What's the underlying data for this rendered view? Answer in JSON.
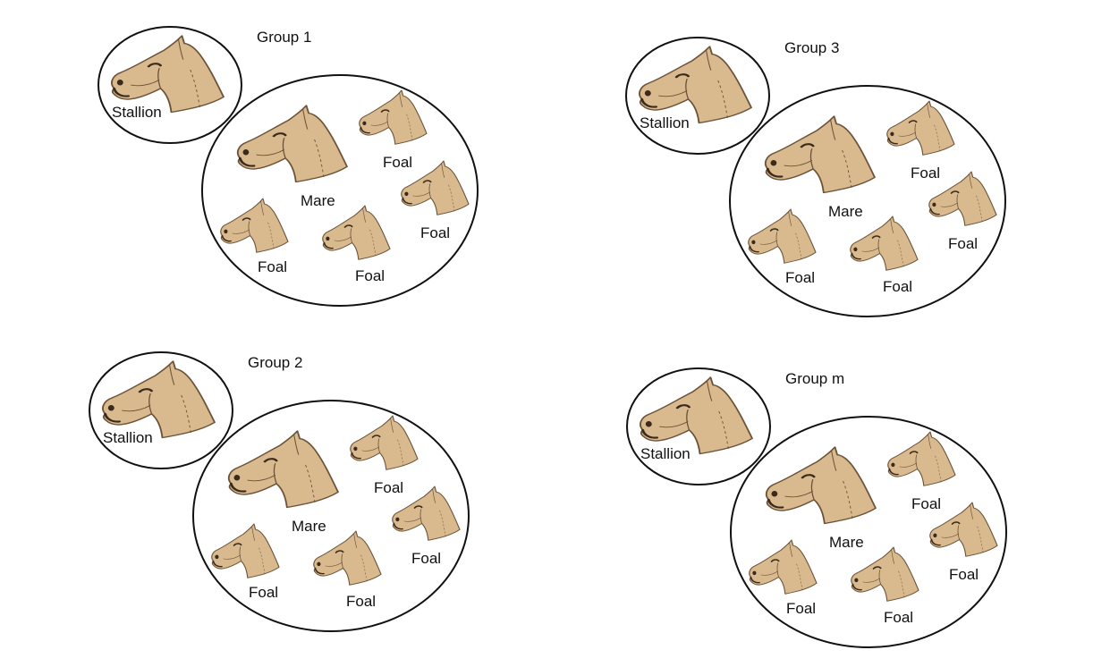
{
  "colors": {
    "background": "#ffffff",
    "outline": "#111111",
    "horse_coat": "#d9b98e",
    "horse_line": "#6b5238",
    "horse_dark": "#3a2a1c"
  },
  "groups": [
    {
      "title": "Group 1",
      "stallion": {
        "label": "Stallion",
        "icon": "horse-head-icon"
      },
      "mare": {
        "label": "Mare",
        "icon": "horse-head-icon"
      },
      "foals": [
        {
          "label": "Foal",
          "icon": "horse-head-icon"
        },
        {
          "label": "Foal",
          "icon": "horse-head-icon"
        },
        {
          "label": "Foal",
          "icon": "horse-head-icon"
        },
        {
          "label": "Foal",
          "icon": "horse-head-icon"
        }
      ]
    },
    {
      "title": "Group 3",
      "stallion": {
        "label": "Stallion",
        "icon": "horse-head-icon"
      },
      "mare": {
        "label": "Mare",
        "icon": "horse-head-icon"
      },
      "foals": [
        {
          "label": "Foal",
          "icon": "horse-head-icon"
        },
        {
          "label": "Foal",
          "icon": "horse-head-icon"
        },
        {
          "label": "Foal",
          "icon": "horse-head-icon"
        },
        {
          "label": "Foal",
          "icon": "horse-head-icon"
        }
      ]
    },
    {
      "title": "Group 2",
      "stallion": {
        "label": "Stallion",
        "icon": "horse-head-icon"
      },
      "mare": {
        "label": "Mare",
        "icon": "horse-head-icon"
      },
      "foals": [
        {
          "label": "Foal",
          "icon": "horse-head-icon"
        },
        {
          "label": "Foal",
          "icon": "horse-head-icon"
        },
        {
          "label": "Foal",
          "icon": "horse-head-icon"
        },
        {
          "label": "Foal",
          "icon": "horse-head-icon"
        }
      ]
    },
    {
      "title": "Group m",
      "stallion": {
        "label": "Stallion",
        "icon": "horse-head-icon"
      },
      "mare": {
        "label": "Mare",
        "icon": "horse-head-icon"
      },
      "foals": [
        {
          "label": "Foal",
          "icon": "horse-head-icon"
        },
        {
          "label": "Foal",
          "icon": "horse-head-icon"
        },
        {
          "label": "Foal",
          "icon": "horse-head-icon"
        },
        {
          "label": "Foal",
          "icon": "horse-head-icon"
        }
      ]
    }
  ]
}
